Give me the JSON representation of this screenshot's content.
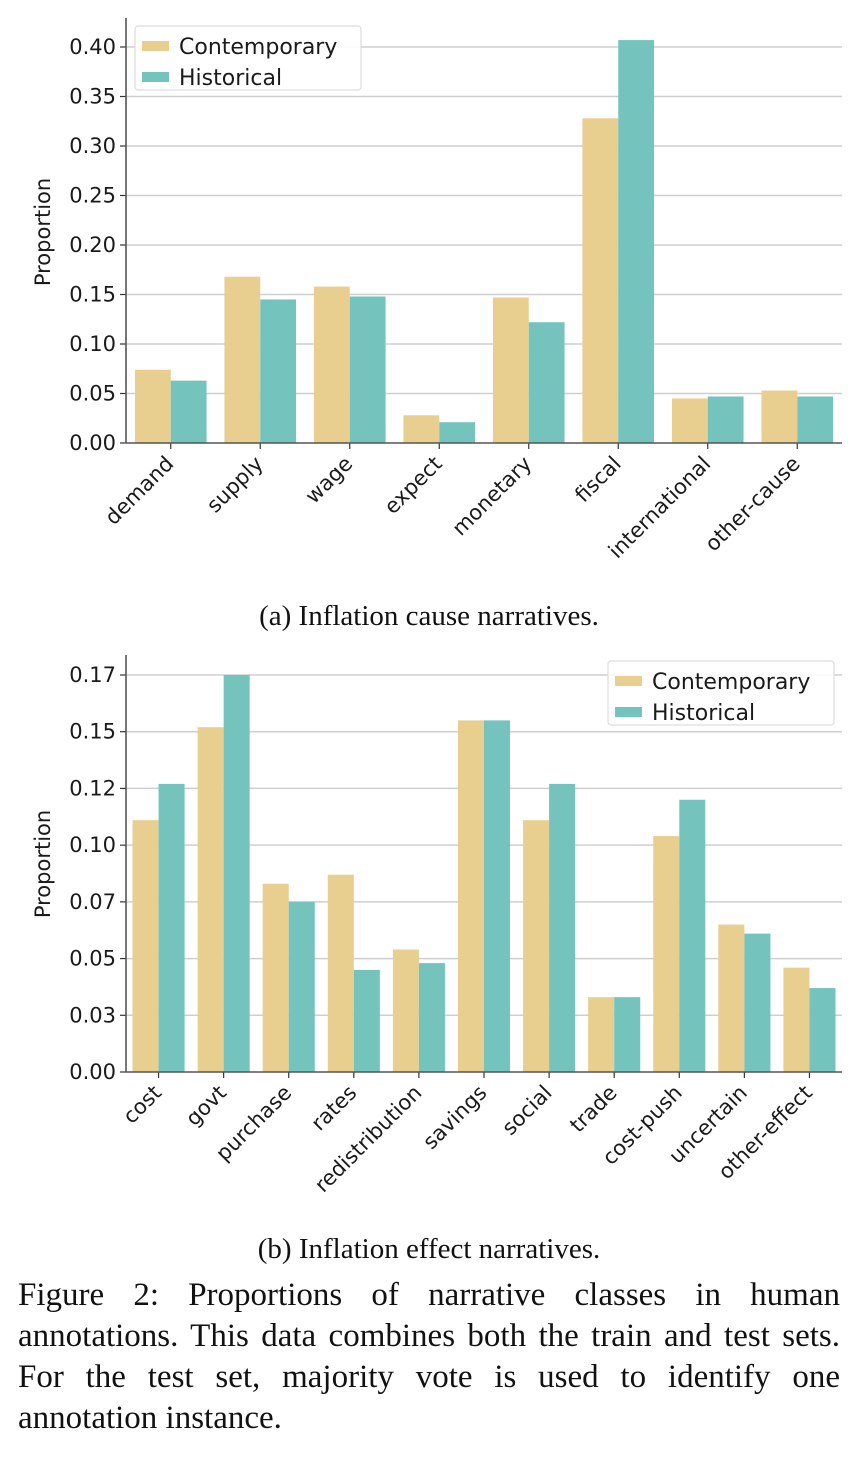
{
  "chart_data": [
    {
      "type": "bar",
      "subcaption": "(a) Inflation cause narratives.",
      "xlabel": "",
      "ylabel": "Proportion",
      "ylim": [
        0,
        0.425
      ],
      "yticks": [
        0.0,
        0.05,
        0.1,
        0.15,
        0.2,
        0.25,
        0.3,
        0.35,
        0.4
      ],
      "ytick_labels": [
        "0.00",
        "0.05",
        "0.10",
        "0.15",
        "0.20",
        "0.25",
        "0.30",
        "0.35",
        "0.40"
      ],
      "grid": "horizontal",
      "legend_position": "top-left",
      "categories": [
        "demand",
        "supply",
        "wage",
        "expect",
        "monetary",
        "fiscal",
        "international",
        "other-cause"
      ],
      "series": [
        {
          "name": "Contemporary",
          "color": "#e8cf90",
          "values": [
            0.074,
            0.168,
            0.158,
            0.028,
            0.147,
            0.328,
            0.045,
            0.053
          ]
        },
        {
          "name": "Historical",
          "color": "#74c4bd",
          "values": [
            0.063,
            0.145,
            0.148,
            0.021,
            0.122,
            0.407,
            0.047,
            0.047
          ]
        }
      ]
    },
    {
      "type": "bar",
      "subcaption": "(b) Inflation effect narratives.",
      "xlabel": "",
      "ylabel": "Proportion",
      "ylim": [
        0,
        0.1835
      ],
      "yticks": [
        0.0,
        0.025,
        0.05,
        0.075,
        0.1,
        0.125,
        0.15,
        0.175
      ],
      "ytick_labels": [
        "0.00",
        "0.03",
        "0.05",
        "0.07",
        "0.10",
        "0.12",
        "0.15",
        "0.17"
      ],
      "grid": "horizontal",
      "legend_position": "top-right",
      "categories": [
        "cost",
        "govt",
        "purchase",
        "rates",
        "redistribution",
        "savings",
        "social",
        "trade",
        "cost-push",
        "uncertain",
        "other-effect"
      ],
      "series": [
        {
          "name": "Contemporary",
          "color": "#e8cf90",
          "values": [
            0.111,
            0.152,
            0.083,
            0.087,
            0.054,
            0.155,
            0.111,
            0.033,
            0.104,
            0.065,
            0.046
          ]
        },
        {
          "name": "Historical",
          "color": "#74c4bd",
          "values": [
            0.127,
            0.175,
            0.075,
            0.045,
            0.048,
            0.155,
            0.127,
            0.033,
            0.12,
            0.061,
            0.037
          ]
        }
      ]
    }
  ],
  "figure_caption": "Figure 2: Proportions of narrative classes in human annotations. This data combines both the train and test sets. For the test set, majority vote is used to identify one annotation instance."
}
